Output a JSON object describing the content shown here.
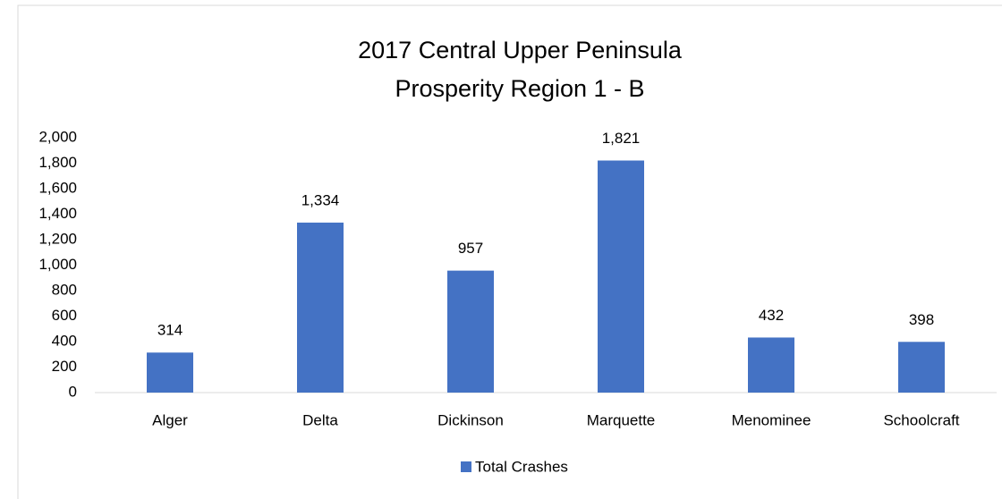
{
  "chart_data": {
    "type": "bar",
    "title": [
      "2017 Central Upper Peninsula",
      "Prosperity Region 1 - B"
    ],
    "categories": [
      "Alger",
      "Delta",
      "Dickinson",
      "Marquette",
      "Menominee",
      "Schoolcraft"
    ],
    "series": [
      {
        "name": "Total Crashes",
        "color": "#4472c4",
        "values": [
          314,
          1334,
          957,
          1821,
          432,
          398
        ],
        "value_labels": [
          "314",
          "1,334",
          "957",
          "1,821",
          "432",
          "398"
        ]
      }
    ],
    "ylim": [
      0,
      2000
    ],
    "yticks": [
      0,
      200,
      400,
      600,
      800,
      {
        "value": 1000,
        "label": "1,000"
      },
      {
        "value": 1200,
        "label": "1,200"
      },
      {
        "value": 1400,
        "label": "1,400"
      },
      {
        "value": 1600,
        "label": "1,600"
      },
      {
        "value": 1800,
        "label": "1,800"
      },
      {
        "value": 2000,
        "label": "2,000"
      }
    ],
    "legend": "bottom"
  }
}
